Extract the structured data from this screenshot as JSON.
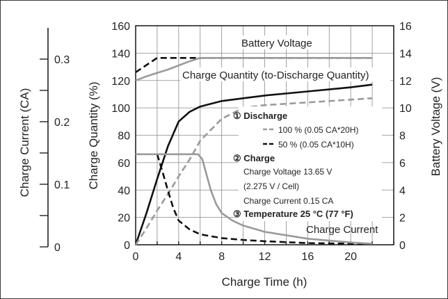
{
  "chart_data": {
    "type": "line",
    "title": "",
    "xlabel": "Charge Time (h)",
    "ylabel": "Charge Quantity (%)",
    "y2label": "Battery Voltage (V)",
    "y3label": "Charge Current (CA)",
    "xlim": [
      0,
      24
    ],
    "ylim": [
      0,
      160
    ],
    "y2lim": [
      0,
      16
    ],
    "y3lim": [
      0,
      0.35
    ],
    "x_ticks": [
      "0",
      "4",
      "8",
      "12",
      "16",
      "20"
    ],
    "y_ticks": [
      "0",
      "20",
      "40",
      "60",
      "80",
      "100",
      "120",
      "140",
      "160"
    ],
    "y2_ticks": [
      "0",
      "2",
      "4",
      "6",
      "8",
      "10",
      "12",
      "14",
      "16"
    ],
    "y3_ticks": [
      "0",
      "0.1",
      "0.2",
      "0.3"
    ],
    "grid": true,
    "series": [
      {
        "group": "voltage",
        "axis": "y2",
        "dash": "dashed",
        "color": "#111111",
        "x": [
          0,
          2,
          6,
          22
        ],
        "values": [
          12.6,
          13.65,
          13.65,
          13.65
        ]
      },
      {
        "group": "voltage",
        "axis": "y2",
        "dash": "solid",
        "color": "#9a9a9a",
        "x": [
          0,
          1,
          3,
          5,
          6,
          22
        ],
        "values": [
          12.0,
          12.3,
          12.8,
          13.4,
          13.65,
          13.65
        ]
      },
      {
        "group": "quantity",
        "axis": "y",
        "dash": "solid",
        "color": "#111111",
        "x": [
          0,
          1,
          2,
          3,
          4,
          5,
          6,
          8,
          10,
          12,
          16,
          20,
          22
        ],
        "values": [
          0,
          23,
          48,
          72,
          90,
          97,
          101,
          105,
          107,
          109,
          112,
          115,
          117
        ]
      },
      {
        "group": "quantity",
        "axis": "y",
        "dash": "dashed",
        "color": "#9a9a9a",
        "x": [
          0,
          1,
          2,
          3,
          4,
          5,
          6,
          8,
          10,
          12,
          16,
          20,
          22
        ],
        "values": [
          0,
          12,
          25,
          37,
          50,
          62,
          76,
          92,
          100,
          102,
          104,
          106,
          107
        ]
      },
      {
        "group": "current",
        "axis": "y3",
        "dash": "dashed",
        "color": "#111111",
        "x": [
          2.0,
          2.5,
          3,
          3.5,
          4,
          5,
          6,
          8,
          10,
          12,
          16,
          20,
          22
        ],
        "values": [
          0.148,
          0.12,
          0.09,
          0.062,
          0.042,
          0.028,
          0.02,
          0.014,
          0.011,
          0.009,
          0.006,
          0.005,
          0.005
        ]
      },
      {
        "group": "current",
        "axis": "y3",
        "dash": "solid",
        "color": "#9a9a9a",
        "x": [
          0,
          5.8,
          6.2,
          6.6,
          7,
          7.5,
          8,
          9,
          10,
          12,
          16,
          20,
          22
        ],
        "values": [
          0.148,
          0.148,
          0.14,
          0.115,
          0.09,
          0.068,
          0.054,
          0.042,
          0.034,
          0.024,
          0.013,
          0.007,
          0.005
        ]
      }
    ],
    "labels": {
      "voltage": "Battery Voltage",
      "quantity": "Charge Quantity (to-Discharge Quantity)",
      "current": "Charge Current"
    },
    "legend": {
      "discharge_heading": "① Discharge",
      "item_100": "100 % (0.05 CA*20H)",
      "item_50": "50 % (0.05 CA*10H)",
      "charge_heading": "② Charge",
      "charge_voltage": "Charge Voltage 13.65 V",
      "per_cell": "(2.275 V / Cell)",
      "charge_current": "Charge Current 0.15 CA",
      "temperature": "③ Temperature 25 °C (77 °F)"
    }
  }
}
